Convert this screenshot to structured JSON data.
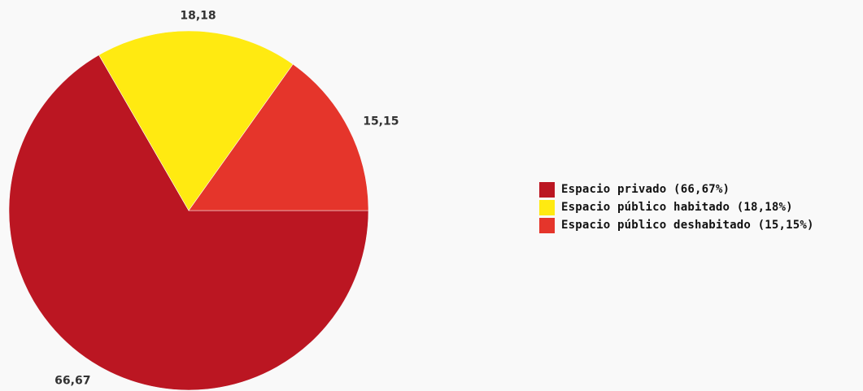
{
  "chart_data": {
    "type": "pie",
    "categories": [
      "Espacio privado",
      "Espacio público habitado",
      "Espacio público deshabitado"
    ],
    "values": [
      66.67,
      18.18,
      15.15
    ],
    "slice_labels": [
      "66,67",
      "18,18",
      "15,15"
    ],
    "colors": [
      "#bb1622",
      "#ffea11",
      "#e5352b"
    ],
    "title": "",
    "legend_placement": "right",
    "legend": [
      {
        "label": "Espacio privado (66,67%)",
        "color": "#bb1622"
      },
      {
        "label": "Espacio público habitado (18,18%)",
        "color": "#ffea11"
      },
      {
        "label": "Espacio público deshabitado (15,15%)",
        "color": "#e5352b"
      }
    ]
  }
}
